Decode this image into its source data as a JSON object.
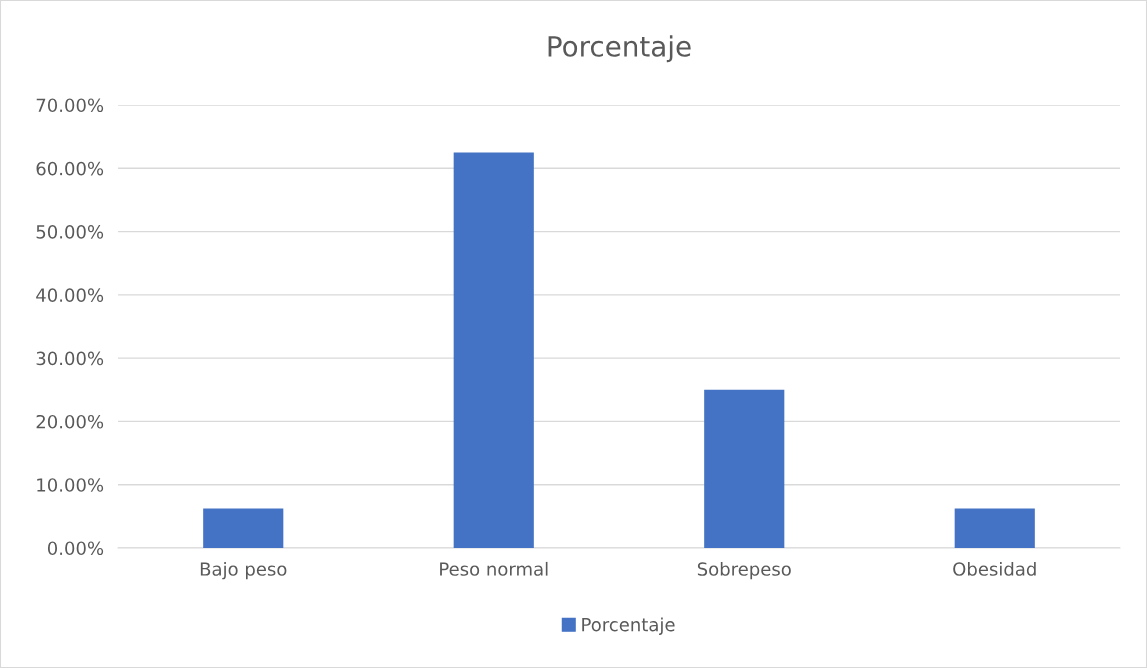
{
  "chart_data": {
    "type": "bar",
    "title": "Porcentaje",
    "categories": [
      "Bajo peso",
      "Peso normal",
      "Sobrepeso",
      "Obesidad"
    ],
    "series": [
      {
        "name": "Porcentaje",
        "color": "#4472c4",
        "values": [
          6.25,
          62.5,
          25,
          6.25
        ]
      }
    ],
    "ylim": [
      0,
      70
    ],
    "yticks": [
      {
        "value": 0,
        "label": "0.00%"
      },
      {
        "value": 10,
        "label": "10.00%"
      },
      {
        "value": 20,
        "label": "20.00%"
      },
      {
        "value": 30,
        "label": "30.00%"
      },
      {
        "value": 40,
        "label": "40.00%"
      },
      {
        "value": 50,
        "label": "50.00%"
      },
      {
        "value": 60,
        "label": "60.00%"
      },
      {
        "value": 70,
        "label": "70.00%"
      }
    ],
    "grid": "y",
    "legend": "bottom"
  }
}
